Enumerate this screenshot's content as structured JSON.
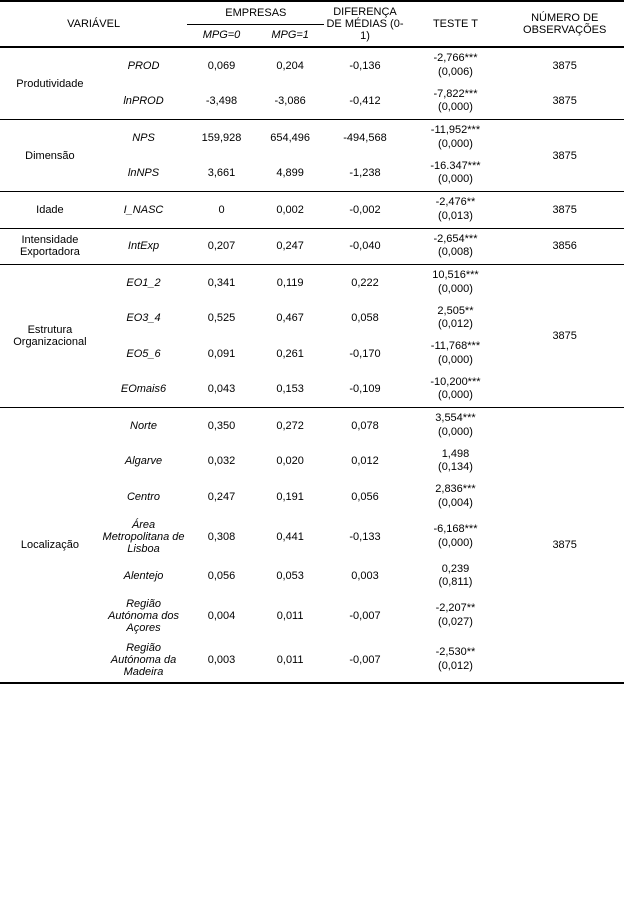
{
  "header": {
    "variavel": "VARIÁVEL",
    "empresas": "EMPRESAS",
    "mpg0": "MPG=0",
    "mpg1": "MPG=1",
    "diferenca": "DIFERENÇA DE MÉDIAS (0-1)",
    "teste_t": "TESTE T",
    "observacoes": "NÚMERO DE OBSERVAÇÕES"
  },
  "groups": [
    {
      "label": "Produtividade",
      "obs": "3875",
      "obs_per_row": true,
      "rows": [
        {
          "var": "PROD",
          "mpg0": "0,069",
          "mpg1": "0,204",
          "diff": "-0,136",
          "t": "-2,766***",
          "p": "(0,006)"
        },
        {
          "var": "lnPROD",
          "mpg0": "-3,498",
          "mpg1": "-3,086",
          "diff": "-0,412",
          "t": "-7,822***",
          "p": "(0,000)"
        }
      ]
    },
    {
      "label": "Dimensão",
      "obs": "3875",
      "obs_per_row": false,
      "rows": [
        {
          "var": "NPS",
          "mpg0": "159,928",
          "mpg1": "654,496",
          "diff": "-494,568",
          "t": "-11,952***",
          "p": "(0,000)"
        },
        {
          "var": "lnNPS",
          "mpg0": "3,661",
          "mpg1": "4,899",
          "diff": "-1,238",
          "t": "-16.347***",
          "p": "(0,000)"
        }
      ]
    },
    {
      "label": "Idade",
      "obs": "3875",
      "obs_per_row": false,
      "rows": [
        {
          "var": "I_NASC",
          "mpg0": "0",
          "mpg1": "0,002",
          "diff": "-0,002",
          "t": "-2,476**",
          "p": "(0,013)"
        }
      ]
    },
    {
      "label": "Intensidade Exportadora",
      "obs": "3856",
      "obs_per_row": false,
      "rows": [
        {
          "var": "IntExp",
          "mpg0": "0,207",
          "mpg1": "0,247",
          "diff": "-0,040",
          "t": "-2,654***",
          "p": "(0,008)"
        }
      ]
    },
    {
      "label": "Estrutura Organizacional",
      "obs": "3875",
      "obs_per_row": false,
      "rows": [
        {
          "var": "EO1_2",
          "mpg0": "0,341",
          "mpg1": "0,119",
          "diff": "0,222",
          "t": "10,516***",
          "p": "(0,000)"
        },
        {
          "var": "EO3_4",
          "mpg0": "0,525",
          "mpg1": "0,467",
          "diff": "0,058",
          "t": "2,505**",
          "p": "(0,012)"
        },
        {
          "var": "EO5_6",
          "mpg0": "0,091",
          "mpg1": "0,261",
          "diff": "-0,170",
          "t": "-11,768***",
          "p": "(0,000)"
        },
        {
          "var": "EOmais6",
          "mpg0": "0,043",
          "mpg1": "0,153",
          "diff": "-0,109",
          "t": "-10,200***",
          "p": "(0,000)"
        }
      ]
    },
    {
      "label": "Localização",
      "obs": "3875",
      "obs_per_row": false,
      "rows": [
        {
          "var": "Norte",
          "mpg0": "0,350",
          "mpg1": "0,272",
          "diff": "0,078",
          "t": "3,554***",
          "p": "(0,000)"
        },
        {
          "var": "Algarve",
          "mpg0": "0,032",
          "mpg1": "0,020",
          "diff": "0,012",
          "t": "1,498",
          "p": "(0,134)"
        },
        {
          "var": "Centro",
          "mpg0": "0,247",
          "mpg1": "0,191",
          "diff": "0,056",
          "t": "2,836***",
          "p": "(0,004)"
        },
        {
          "var": "Área Metropolitana de Lisboa",
          "mpg0": "0,308",
          "mpg1": "0,441",
          "diff": "-0,133",
          "t": "-6,168***",
          "p": "(0,000)"
        },
        {
          "var": "Alentejo",
          "mpg0": "0,056",
          "mpg1": "0,053",
          "diff": "0,003",
          "t": "0,239",
          "p": "(0,811)"
        },
        {
          "var": "Região Autónoma dos Açores",
          "mpg0": "0,004",
          "mpg1": "0,011",
          "diff": "-0,007",
          "t": "-2,207**",
          "p": "(0,027)"
        },
        {
          "var": "Região Autónoma da Madeira",
          "mpg0": "0,003",
          "mpg1": "0,011",
          "diff": "-0,007",
          "t": "-2,530**",
          "p": "(0,012)"
        }
      ]
    }
  ]
}
